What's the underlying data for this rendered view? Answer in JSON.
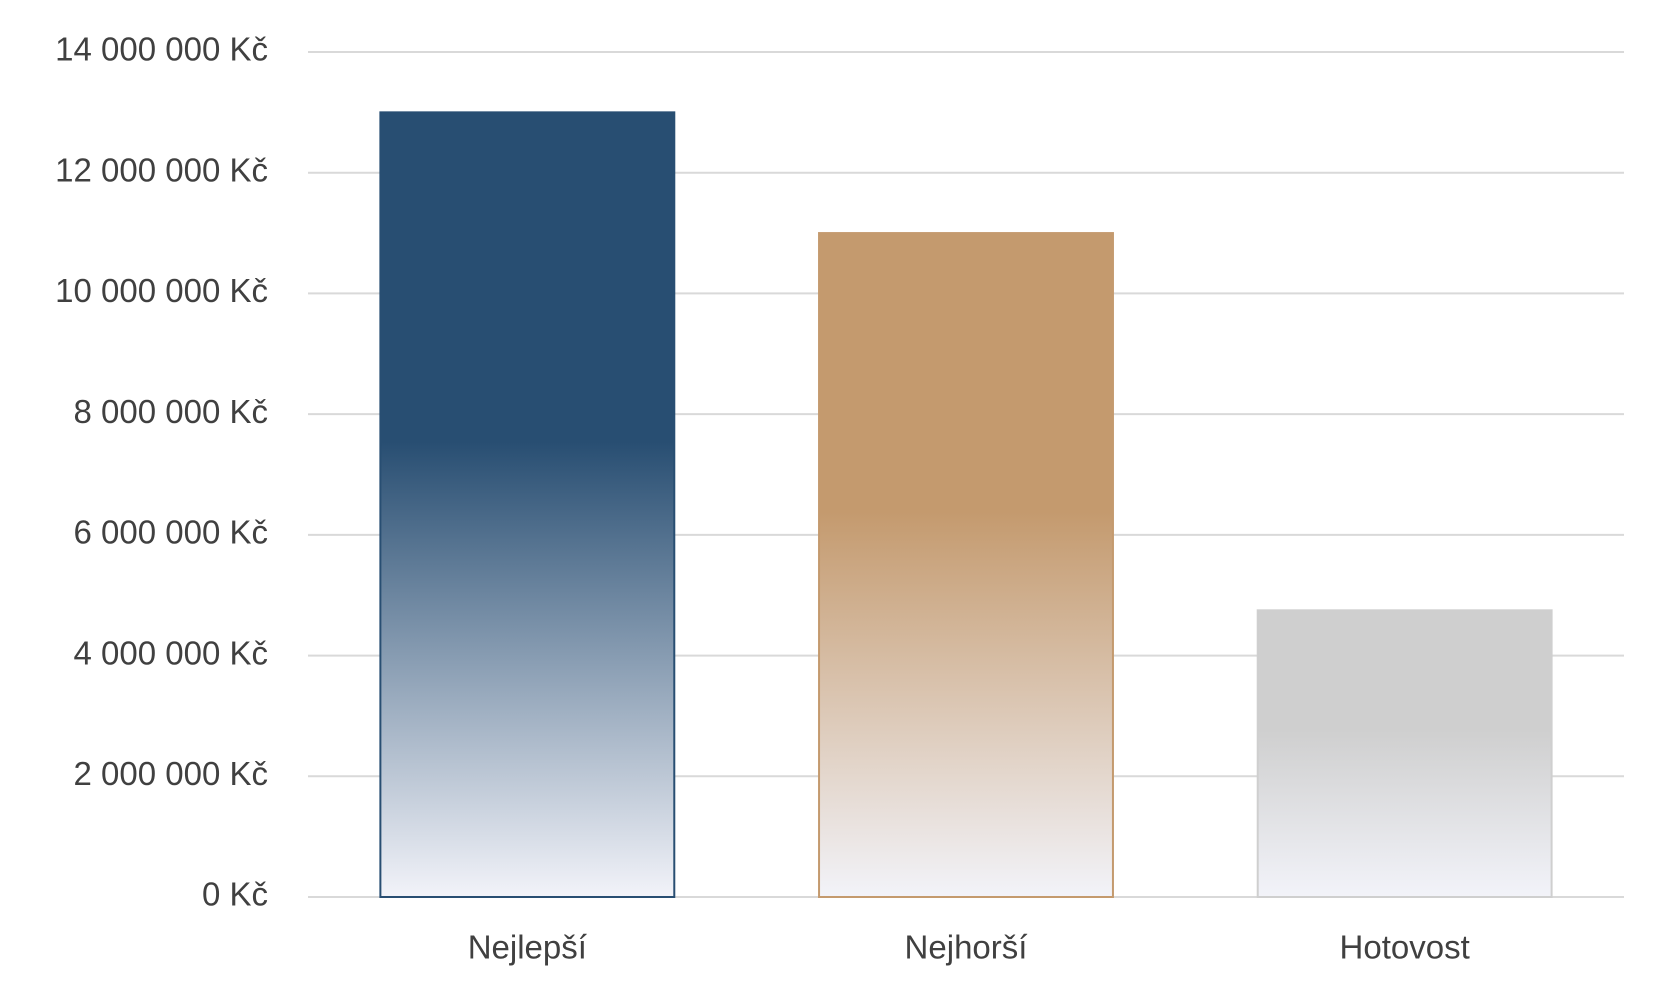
{
  "chart_data": {
    "type": "bar",
    "categories": [
      "Nejlepší",
      "Nejhorší",
      "Hotovost"
    ],
    "values": [
      13000000,
      11000000,
      4750000
    ],
    "colors": [
      "#284e72",
      "#c49a6e",
      "#cfcfcf"
    ],
    "ylim": [
      0,
      14000000
    ],
    "yticks": [
      {
        "value": 0,
        "label": "0 Kč"
      },
      {
        "value": 2000000,
        "label": "2 000 000 Kč"
      },
      {
        "value": 4000000,
        "label": "4 000 000 Kč"
      },
      {
        "value": 6000000,
        "label": "6 000 000 Kč"
      },
      {
        "value": 8000000,
        "label": "8 000 000 Kč"
      },
      {
        "value": 10000000,
        "label": "10 000 000 Kč"
      },
      {
        "value": 12000000,
        "label": "12 000 000 Kč"
      },
      {
        "value": 14000000,
        "label": "14 000 000 Kč"
      }
    ],
    "grid": true
  }
}
